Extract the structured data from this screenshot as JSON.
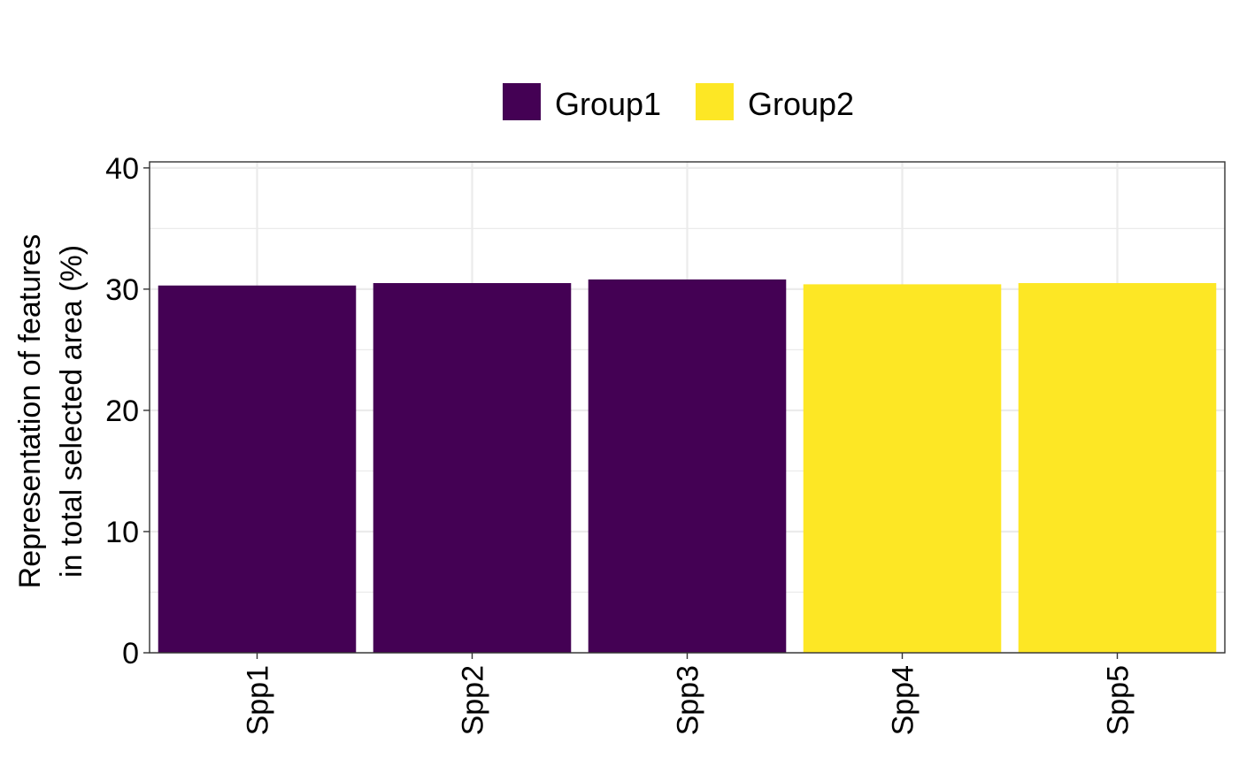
{
  "chart_data": {
    "type": "bar",
    "categories": [
      "Spp1",
      "Spp2",
      "Spp3",
      "Spp4",
      "Spp5"
    ],
    "values": [
      30.3,
      30.5,
      30.8,
      30.4,
      30.5
    ],
    "groups": [
      "Group1",
      "Group1",
      "Group1",
      "Group2",
      "Group2"
    ],
    "legend": {
      "position": "top",
      "entries": [
        {
          "label": "Group1",
          "color": "#440154"
        },
        {
          "label": "Group2",
          "color": "#FDE725"
        }
      ]
    },
    "ylabel_lines": [
      "Representation of features",
      "in total selected area (%)"
    ],
    "xlabel": "",
    "ylim": [
      0,
      40.5
    ],
    "yticks": [
      0,
      10,
      20,
      30,
      40
    ],
    "grid": true
  }
}
